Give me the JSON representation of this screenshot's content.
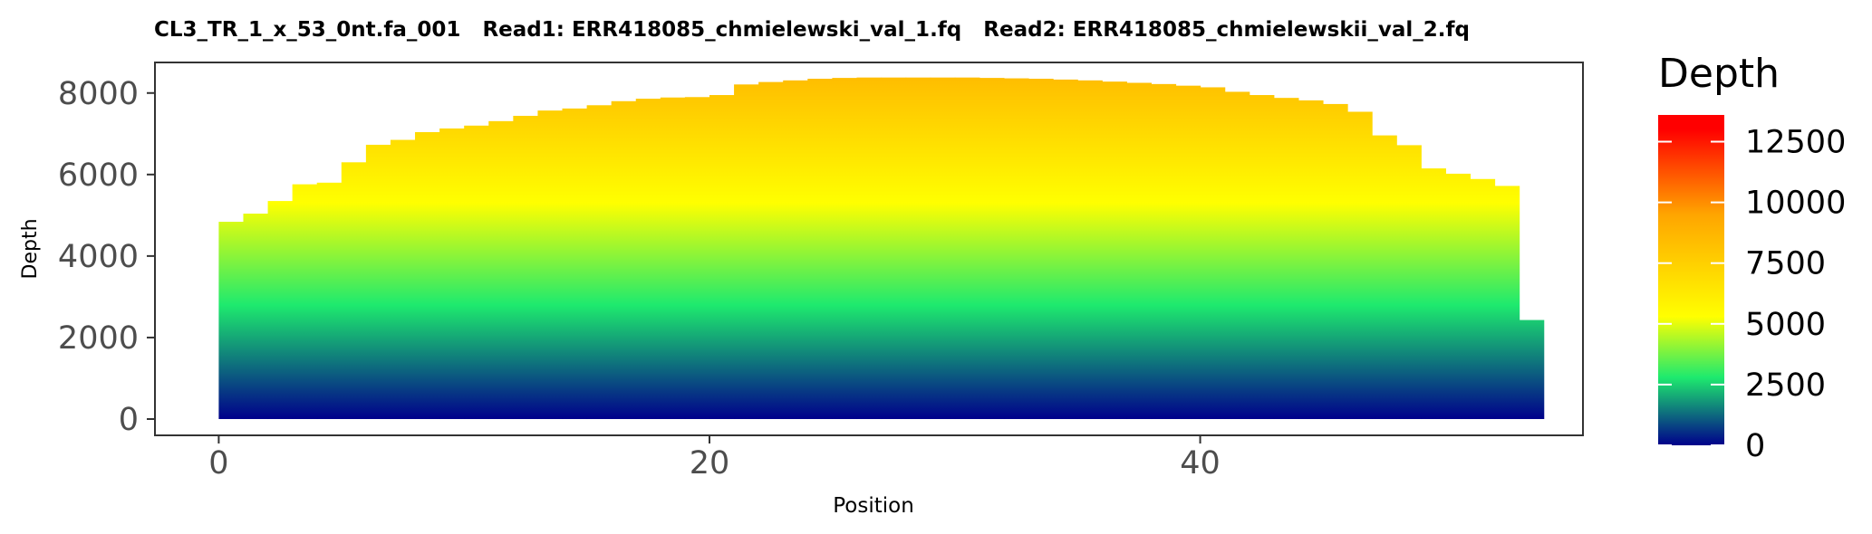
{
  "chart_data": {
    "type": "area",
    "title": "CL3_TR_1_x_53_0nt.fa_001   Read1: ERR418085_chmielewski_val_1.fq   Read2: ERR418085_chmielewskii_val_2.fq",
    "xlabel": "Position",
    "ylabel": "Depth",
    "xlim": [
      -2.6,
      55.6
    ],
    "ylim": [
      -400,
      8750
    ],
    "x_ticks": [
      0,
      20,
      40
    ],
    "y_ticks": [
      0,
      2000,
      4000,
      6000,
      8000
    ],
    "x": [
      0,
      1,
      2,
      3,
      4,
      5,
      6,
      7,
      8,
      9,
      10,
      11,
      12,
      13,
      14,
      15,
      16,
      17,
      18,
      19,
      20,
      21,
      22,
      23,
      24,
      25,
      26,
      27,
      28,
      29,
      30,
      31,
      32,
      33,
      34,
      35,
      36,
      37,
      38,
      39,
      40,
      41,
      42,
      43,
      44,
      45,
      46,
      47,
      48,
      49,
      50,
      51,
      52,
      53
    ],
    "values": [
      4840,
      5040,
      5350,
      5760,
      5800,
      6300,
      6730,
      6850,
      7040,
      7130,
      7200,
      7310,
      7440,
      7570,
      7620,
      7700,
      7800,
      7860,
      7890,
      7900,
      7950,
      8210,
      8270,
      8310,
      8350,
      8370,
      8380,
      8380,
      8380,
      8380,
      8380,
      8370,
      8360,
      8350,
      8330,
      8310,
      8280,
      8250,
      8220,
      8180,
      8140,
      8030,
      7950,
      7880,
      7820,
      7730,
      7540,
      6960,
      6720,
      6150,
      6020,
      5890,
      5720,
      2430
    ],
    "fill_gradient_stops": [
      {
        "value": 0,
        "color": "#00008b"
      },
      {
        "value": 2800,
        "color": "#1eea6e"
      },
      {
        "value": 5300,
        "color": "#ffff00"
      },
      {
        "value": 9500,
        "color": "#ffa500"
      },
      {
        "value": 13000,
        "color": "#ff0000"
      }
    ],
    "legend": {
      "title": "Depth",
      "range": [
        0,
        13600
      ],
      "ticks": [
        0,
        2500,
        5000,
        7500,
        10000,
        12500
      ],
      "tick_labels": [
        "0",
        "2500",
        "5000",
        "7500",
        "10000",
        "12500"
      ],
      "position": "right"
    }
  }
}
